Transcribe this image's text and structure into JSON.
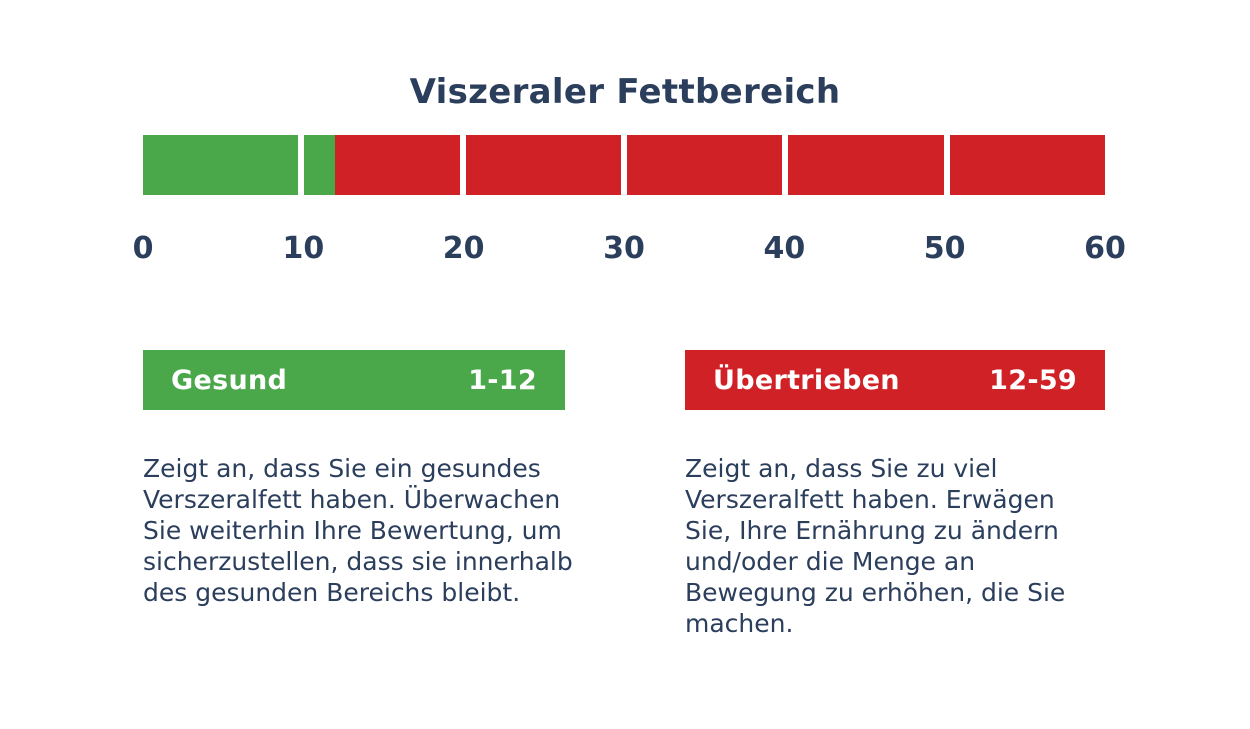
{
  "title": "Viszeraler Fettbereich",
  "colors": {
    "green": "#4aa74a",
    "red": "#d02127",
    "navy": "#2b3e5c",
    "background": "#ffffff"
  },
  "scale": {
    "ticks": [
      "0",
      "10",
      "20",
      "30",
      "40",
      "50",
      "60"
    ]
  },
  "legend": {
    "healthy": {
      "label": "Gesund",
      "range": "1-12",
      "description": "Zeigt an, dass Sie ein gesundes Verszeralfett haben. Überwachen Sie weiterhin Ihre Bewertung, um sicherzustellen, dass sie innerhalb des gesunden Bereichs bleibt."
    },
    "excessive": {
      "label": "Übertrieben",
      "range": "12-59",
      "description": "Zeigt an, dass Sie zu viel Verszeralfett haben. Erwägen Sie, Ihre Ernährung zu ändern und/oder die Menge an Bewegung zu erhöhen, die Sie machen."
    }
  },
  "chart_data": {
    "type": "bar",
    "orientation": "horizontal",
    "title": "Viszeraler Fettbereich",
    "axis_range": [
      0,
      60
    ],
    "axis_ticks": [
      0,
      10,
      20,
      30,
      40,
      50,
      60
    ],
    "segments": 6,
    "segment_size": 10,
    "ranges": [
      {
        "name": "Gesund",
        "start": 0,
        "end": 12,
        "color": "#4aa74a",
        "label_range": "1-12"
      },
      {
        "name": "Übertrieben",
        "start": 12,
        "end": 60,
        "color": "#d02127",
        "label_range": "12-59"
      }
    ],
    "grid": false,
    "legend_position": "bottom"
  }
}
